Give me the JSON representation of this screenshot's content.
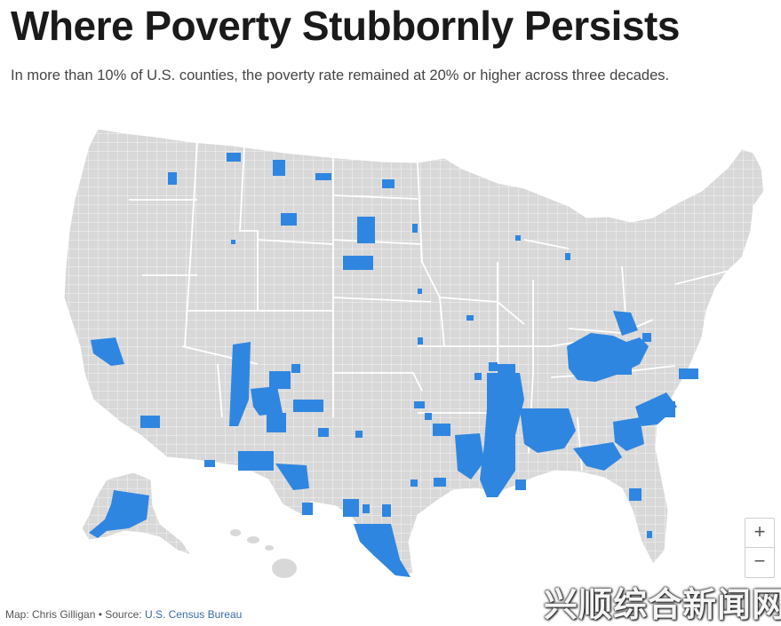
{
  "title": "Where Poverty Stubbornly Persists",
  "subtitle": "In more than 10% of U.S. counties, the poverty rate remained at 20% or higher across three decades.",
  "zoom": {
    "in_label": "+",
    "out_label": "−"
  },
  "credit": {
    "prefix": "Map: Chris Gilligan • Source: ",
    "source_link": "U.S. Census Bureau"
  },
  "watermark": "兴顺综合新闻网",
  "colors": {
    "background": "#ffffff",
    "land": "#d8d8d8",
    "county_border": "#ffffff",
    "highlight": "#2f86e0"
  },
  "legend_meaning": "blue counties: poverty rate at 20% or higher across three decades"
}
